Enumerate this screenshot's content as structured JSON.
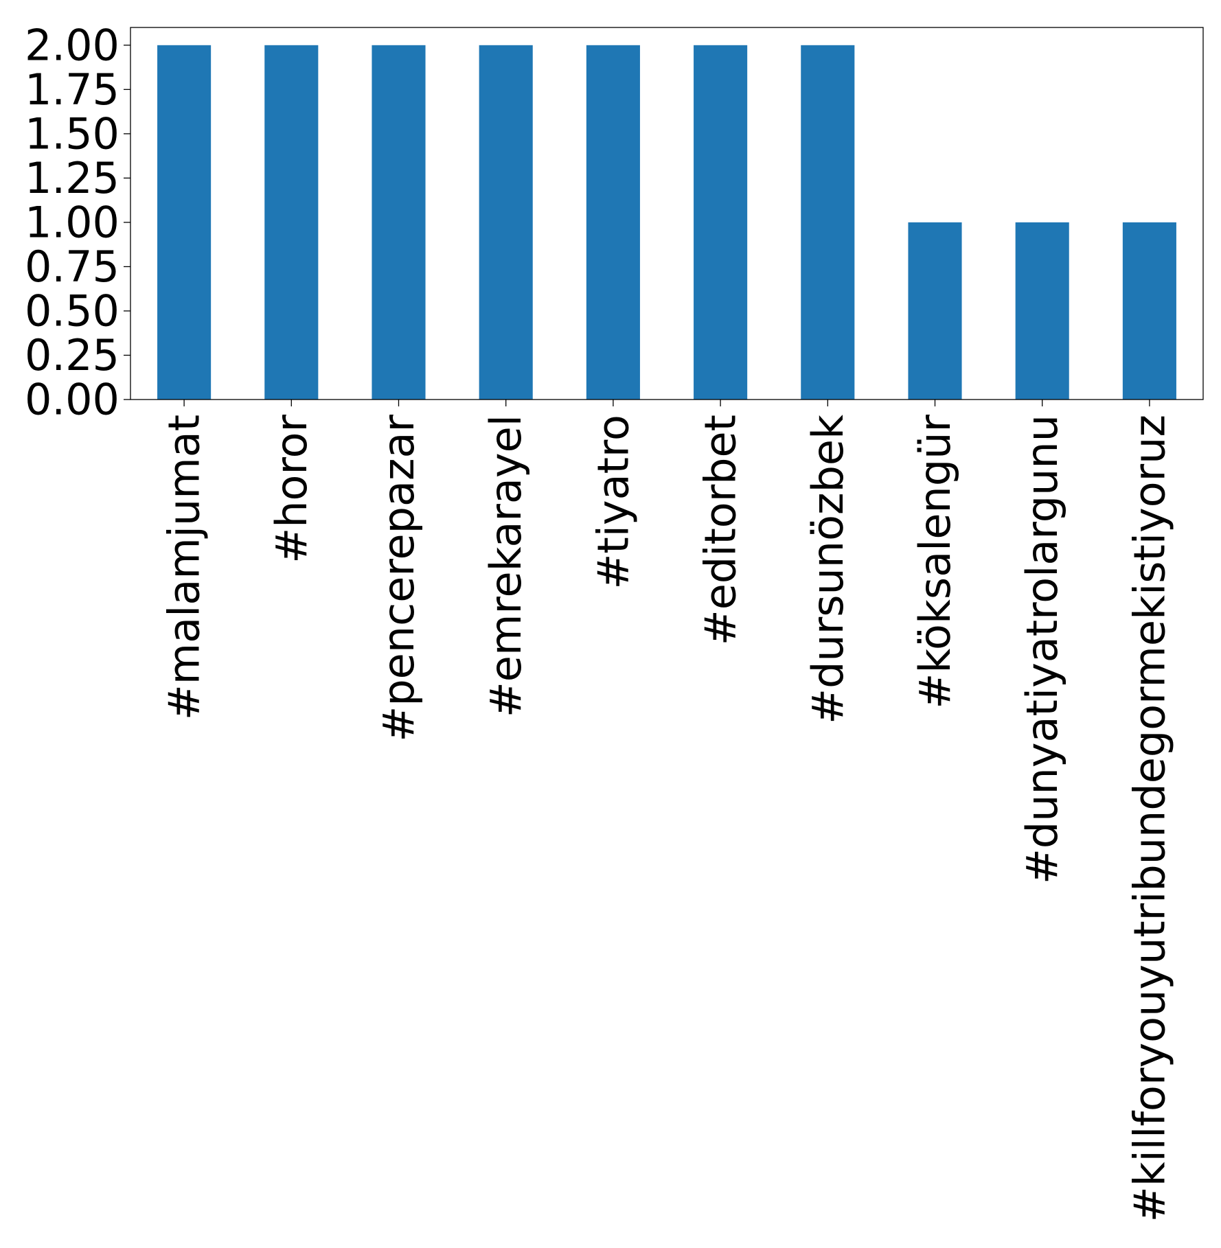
{
  "chart_data": {
    "type": "bar",
    "title": "",
    "xlabel": "",
    "ylabel": "",
    "categories": [
      "#malamjumat",
      "#horor",
      "#pencerepazar",
      "#emrekarayel",
      "#tiyatro",
      "#editorbet",
      "#dursunözbek",
      "#köksalengür",
      "#dunyatiyatrolargunu",
      "#killforyouyutribundegormekistiyoruz"
    ],
    "values": [
      2,
      2,
      2,
      2,
      2,
      2,
      2,
      1,
      1,
      1
    ],
    "ylim": [
      0,
      2.1
    ],
    "yticks": [
      "0.00",
      "0.25",
      "0.50",
      "0.75",
      "1.00",
      "1.25",
      "1.50",
      "1.75",
      "2.00"
    ],
    "bar_color": "#1f77b4",
    "grid": false,
    "legend": "none"
  }
}
